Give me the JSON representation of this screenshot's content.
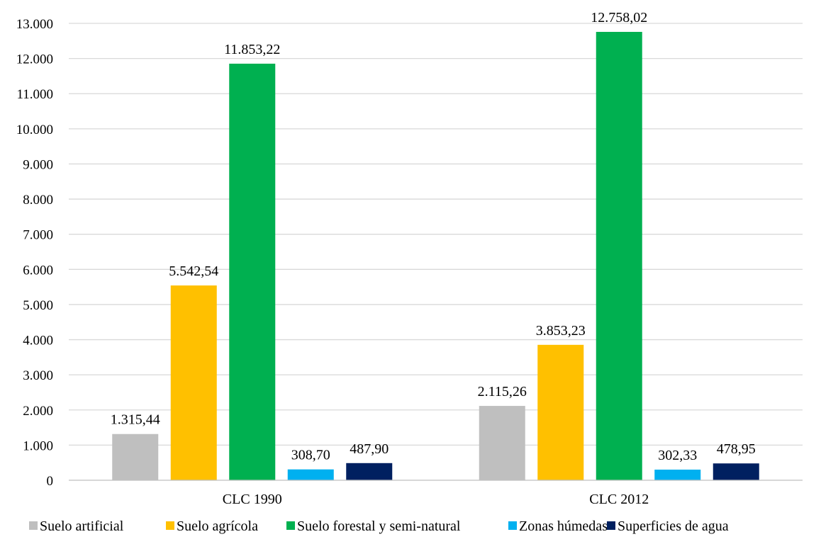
{
  "chart_data": {
    "type": "bar",
    "title": "",
    "xlabel": "",
    "ylabel": "",
    "categories": [
      "CLC 1990",
      "CLC 2012"
    ],
    "ylim": [
      0,
      13000
    ],
    "yticks": [
      0,
      1000,
      2000,
      3000,
      4000,
      5000,
      6000,
      7000,
      8000,
      9000,
      10000,
      11000,
      12000,
      13000
    ],
    "ytick_labels": [
      "0",
      "1.000",
      "2.000",
      "3.000",
      "4.000",
      "5.000",
      "6.000",
      "7.000",
      "8.000",
      "9.000",
      "10.000",
      "11.000",
      "12.000",
      "13.000"
    ],
    "grid": true,
    "legend": "bottom",
    "series": [
      {
        "name": "Suelo artificial",
        "color": "#bfbfbf",
        "values": [
          1315.44,
          2115.26
        ],
        "labels": [
          "1.315,44",
          "2.115,26"
        ]
      },
      {
        "name": "Suelo agrícola",
        "color": "#ffc000",
        "values": [
          5542.54,
          3853.23
        ],
        "labels": [
          "5.542,54",
          "3.853,23"
        ]
      },
      {
        "name": "Suelo forestal y semi-natural",
        "color": "#00b050",
        "values": [
          11853.22,
          12758.02
        ],
        "labels": [
          "11.853,22",
          "12.758,02"
        ]
      },
      {
        "name": "Zonas húmedas",
        "color": "#00b0f0",
        "values": [
          308.7,
          302.33
        ],
        "labels": [
          "308,70",
          "302,33"
        ]
      },
      {
        "name": "Superficies de agua",
        "color": "#002060",
        "values": [
          487.9,
          478.95
        ],
        "labels": [
          "487,90",
          "478,95"
        ]
      }
    ]
  }
}
